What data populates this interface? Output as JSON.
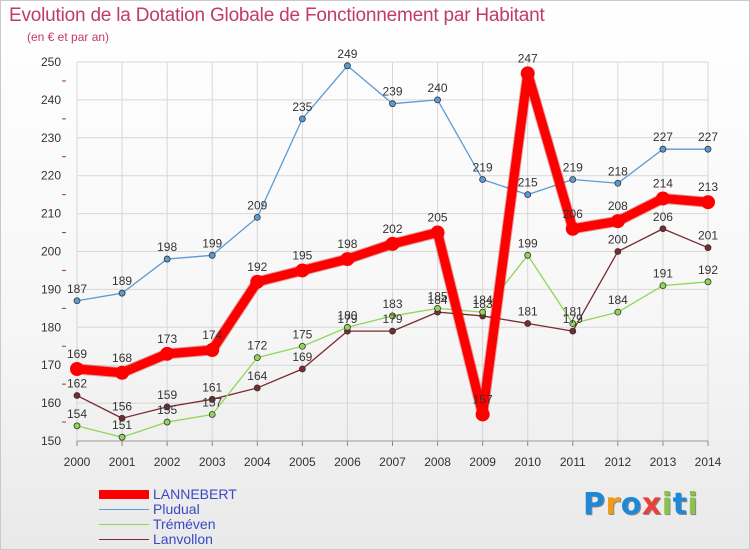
{
  "title": "Evolution de la Dotation Globale de Fonctionnement par Habitant",
  "subtitle": "(en € et par an)",
  "logo": {
    "letters": [
      "P",
      "r",
      "o",
      "x",
      "i",
      "t",
      "i"
    ],
    "colors": [
      "#1e88d8",
      "#f29a1b",
      "#1e88d8",
      "#e8413c",
      "#8bc34a",
      "#1e88d8",
      "#8bc34a"
    ]
  },
  "chart_data": {
    "type": "line",
    "title": "Evolution de la Dotation Globale de Fonctionnement par Habitant",
    "subtitle": "(en € et par an)",
    "x": [
      "2000",
      "2001",
      "2002",
      "2003",
      "2004",
      "2005",
      "2006",
      "2007",
      "2008",
      "2009",
      "2010",
      "2011",
      "2012",
      "2013",
      "2014"
    ],
    "ylim": [
      150,
      250
    ],
    "yticks": [
      150,
      160,
      170,
      180,
      190,
      200,
      210,
      220,
      230,
      240,
      250
    ],
    "grid": true,
    "legend_position": "bottom-left",
    "series": [
      {
        "name": "LANNEBERT",
        "color": "#ff0000",
        "values": [
          169,
          168,
          173,
          174,
          192,
          195,
          198,
          202,
          205,
          157,
          247,
          206,
          208,
          214,
          213
        ]
      },
      {
        "name": "Pludual",
        "color": "#5b9bd5",
        "values": [
          187,
          189,
          198,
          199,
          209,
          235,
          249,
          239,
          240,
          219,
          215,
          219,
          218,
          227,
          227
        ]
      },
      {
        "name": "Tréméven",
        "color": "#90d656",
        "values": [
          154,
          151,
          155,
          157,
          172,
          175,
          180,
          183,
          185,
          184,
          199,
          181,
          184,
          191,
          192
        ]
      },
      {
        "name": "Lanvollon",
        "color": "#7a2a30",
        "values": [
          162,
          156,
          159,
          161,
          164,
          169,
          179,
          179,
          184,
          183,
          181,
          179,
          200,
          206,
          201
        ]
      }
    ]
  }
}
